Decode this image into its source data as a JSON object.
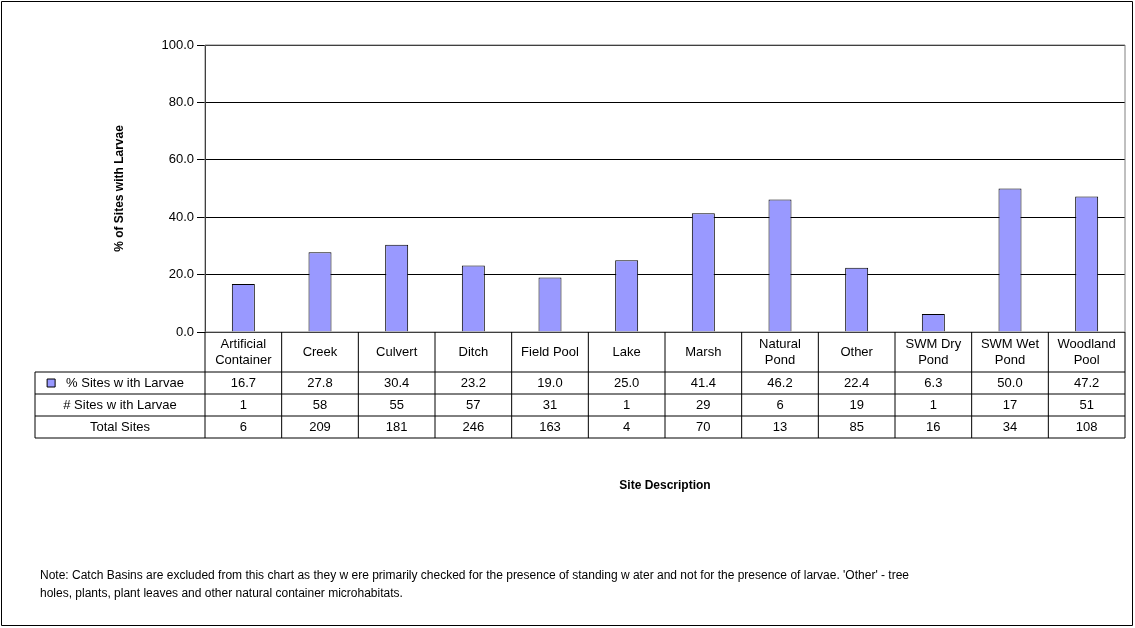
{
  "chart_data": {
    "type": "bar",
    "ylabel": "% of Sites with Larvae",
    "categories": [
      "Artificial Container",
      "Creek",
      "Culvert",
      "Ditch",
      "Field Pool",
      "Lake",
      "Marsh",
      "Natural Pond",
      "Other",
      "SWM Dry Pond",
      "SWM Wet Pond",
      "Woodland Pool"
    ],
    "series": [
      {
        "name": "% Sites w ith Larvae",
        "color": "#9999ff",
        "values": [
          16.7,
          27.8,
          30.4,
          23.2,
          19.0,
          25.0,
          41.4,
          46.2,
          22.4,
          6.3,
          50.0,
          47.2
        ],
        "value_labels": [
          "16.7",
          "27.8",
          "30.4",
          "23.2",
          "19.0",
          "25.0",
          "41.4",
          "46.2",
          "22.4",
          "6.3",
          "50.0",
          "47.2"
        ]
      },
      {
        "name": "# Sites w ith Larvae",
        "type": "other",
        "values": [
          null,
          null,
          null,
          null,
          null,
          null,
          null,
          null,
          null,
          null,
          null,
          null
        ],
        "value_labels": [
          "1",
          "58",
          "55",
          "57",
          "31",
          "1",
          "29",
          "6",
          "19",
          "1",
          "17",
          "51"
        ]
      },
      {
        "name": "Total Sites",
        "type": "other",
        "values": [
          null,
          null,
          null,
          null,
          null,
          null,
          null,
          null,
          null,
          null,
          null,
          null
        ],
        "value_labels": [
          "6",
          "209",
          "181",
          "246",
          "163",
          "4",
          "70",
          "13",
          "85",
          "16",
          "34",
          "108"
        ]
      }
    ],
    "ylim": [
      0,
      100
    ],
    "yticks": [
      {
        "value": 0,
        "label": "0.0"
      },
      {
        "value": 20,
        "label": "20.0"
      },
      {
        "value": 40,
        "label": "40.0"
      },
      {
        "value": 60,
        "label": "60.0"
      },
      {
        "value": 80,
        "label": "80.0"
      },
      {
        "value": 100,
        "label": "100.0"
      }
    ],
    "grid": "y",
    "legend": "bottom",
    "data_labels": true,
    "annotations": [
      "Site Description",
      "Note: Catch Basins are excluded from this chart as they w ere primarily checked for the presence of standing w ater and not for the presence of larvae. 'Other' - tree holes, plants, plant leaves and other natural container microhabitats."
    ]
  }
}
